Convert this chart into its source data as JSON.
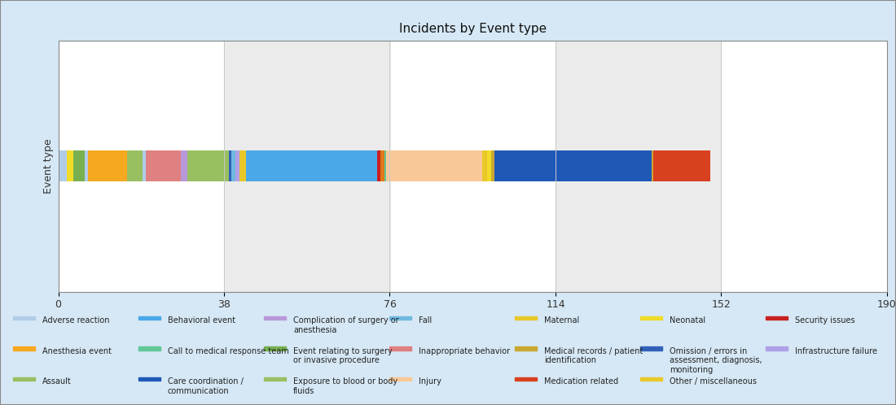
{
  "title": "Incidents by Event type",
  "ylabel": "Event type",
  "xlim": [
    0,
    190
  ],
  "xticks": [
    0,
    38,
    76,
    114,
    152,
    190
  ],
  "fig_bg": "#d6e8f5",
  "plot_bg": "#ffffff",
  "grid_col": "#e8e8e8",
  "bar_height": 0.55,
  "segments": [
    {
      "label": "Adverse reaction",
      "value": 2.0,
      "color": "#b0cce8"
    },
    {
      "label": "Neonatal",
      "value": 1.5,
      "color": "#f0dc28"
    },
    {
      "label": "Event relating to surgery or invasive procedure",
      "value": 2.5,
      "color": "#78b050"
    },
    {
      "label": "Adverse reaction b",
      "value": 0.8,
      "color": "#b0cce8"
    },
    {
      "label": "Anesthesia event",
      "value": 9.0,
      "color": "#f5a820"
    },
    {
      "label": "Exposure to blood or body fluids",
      "value": 3.5,
      "color": "#98c060"
    },
    {
      "label": "Adverse reaction c",
      "value": 0.8,
      "color": "#b0cce8"
    },
    {
      "label": "Inappropriate behavior",
      "value": 8.0,
      "color": "#e08080"
    },
    {
      "label": "Complication of surgery or anesthesia",
      "value": 1.5,
      "color": "#b898d8"
    },
    {
      "label": "Assault",
      "value": 9.5,
      "color": "#98c060"
    },
    {
      "label": "Omission",
      "value": 0.5,
      "color": "#3060b8"
    },
    {
      "label": "Fall",
      "value": 1.0,
      "color": "#70b8e0"
    },
    {
      "label": "Infrastructure failure",
      "value": 1.0,
      "color": "#b0a0e8"
    },
    {
      "label": "Other / miscellaneous",
      "value": 1.5,
      "color": "#e8c828"
    },
    {
      "label": "Behavioral event",
      "value": 30.0,
      "color": "#4aa8e8"
    },
    {
      "label": "Security issues",
      "value": 0.8,
      "color": "#c82020"
    },
    {
      "label": "Behavioral event b",
      "value": 0.8,
      "color": "#e07818"
    },
    {
      "label": "Call to medical response team",
      "value": 0.5,
      "color": "#60c898"
    },
    {
      "label": "Injury",
      "value": 22.0,
      "color": "#f8c898"
    },
    {
      "label": "Maternal",
      "value": 1.2,
      "color": "#e8c828"
    },
    {
      "label": "Neonatal b",
      "value": 0.8,
      "color": "#f0dc28"
    },
    {
      "label": "Medical records b",
      "value": 0.8,
      "color": "#c8a830"
    },
    {
      "label": "Care coordination / communication",
      "value": 36.0,
      "color": "#2058b8"
    },
    {
      "label": "Medical records c",
      "value": 0.5,
      "color": "#c8a830"
    },
    {
      "label": "Medication related",
      "value": 13.0,
      "color": "#d84020"
    }
  ],
  "legend_items": [
    {
      "label": "Adverse reaction",
      "color": "#b0cce8"
    },
    {
      "label": "Anesthesia event",
      "color": "#f5a820"
    },
    {
      "label": "Assault",
      "color": "#98c060"
    },
    {
      "label": "Behavioral event",
      "color": "#4aa8e8"
    },
    {
      "label": "Call to medical response team",
      "color": "#60c898"
    },
    {
      "label": "Care coordination /\ncommunication",
      "color": "#2058b8"
    },
    {
      "label": "Complication of surgery or\nanesthesia",
      "color": "#b898d8"
    },
    {
      "label": "Event relating to surgery\nor invasive procedure",
      "color": "#78b050"
    },
    {
      "label": "Exposure to blood or body\nfluids",
      "color": "#98c060"
    },
    {
      "label": "Fall",
      "color": "#70b8e0"
    },
    {
      "label": "Inappropriate behavior",
      "color": "#e08080"
    },
    {
      "label": "Injury",
      "color": "#f8c898"
    },
    {
      "label": "Maternal",
      "color": "#e8c828"
    },
    {
      "label": "Medical records / patient\nidentification",
      "color": "#c8a830"
    },
    {
      "label": "Medication related",
      "color": "#d84020"
    },
    {
      "label": "Neonatal",
      "color": "#f0dc28"
    },
    {
      "label": "Omission / errors in\nassessment, diagnosis,\nmonitoring",
      "color": "#3060b8"
    },
    {
      "label": "Other / miscellaneous",
      "color": "#e8c828"
    },
    {
      "label": "Security issues",
      "color": "#c82020"
    },
    {
      "label": "Infrastructure failure",
      "color": "#b0a0e8"
    }
  ]
}
